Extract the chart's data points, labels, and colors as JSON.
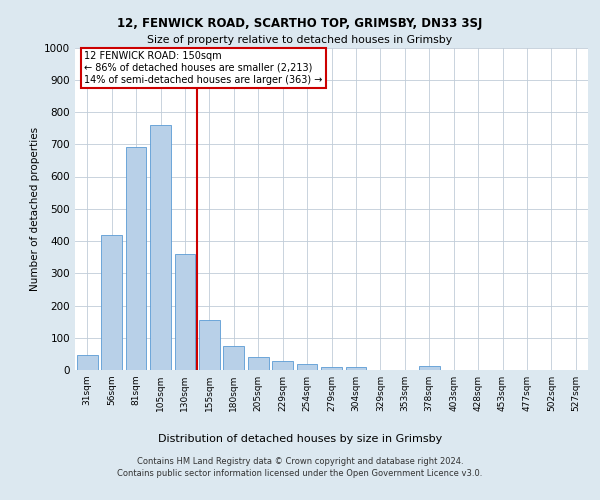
{
  "title": "12, FENWICK ROAD, SCARTHO TOP, GRIMSBY, DN33 3SJ",
  "subtitle": "Size of property relative to detached houses in Grimsby",
  "xlabel": "Distribution of detached houses by size in Grimsby",
  "ylabel": "Number of detached properties",
  "categories": [
    "31sqm",
    "56sqm",
    "81sqm",
    "105sqm",
    "130sqm",
    "155sqm",
    "180sqm",
    "205sqm",
    "229sqm",
    "254sqm",
    "279sqm",
    "304sqm",
    "329sqm",
    "353sqm",
    "378sqm",
    "403sqm",
    "428sqm",
    "453sqm",
    "477sqm",
    "502sqm",
    "527sqm"
  ],
  "values": [
    48,
    420,
    690,
    760,
    360,
    155,
    75,
    40,
    27,
    18,
    10,
    10,
    0,
    0,
    12,
    0,
    0,
    0,
    0,
    0,
    0
  ],
  "bar_color": "#b8d0e8",
  "bar_edge_color": "#5b9bd5",
  "vline_x_after_bin": 4,
  "annotation_title": "12 FENWICK ROAD: 150sqm",
  "annotation_line1": "← 86% of detached houses are smaller (2,213)",
  "annotation_line2": "14% of semi-detached houses are larger (363) →",
  "vline_color": "#cc0000",
  "annotation_box_facecolor": "#ffffff",
  "annotation_box_edgecolor": "#cc0000",
  "ylim": [
    0,
    1000
  ],
  "yticks": [
    0,
    100,
    200,
    300,
    400,
    500,
    600,
    700,
    800,
    900,
    1000
  ],
  "footer1": "Contains HM Land Registry data © Crown copyright and database right 2024.",
  "footer2": "Contains public sector information licensed under the Open Government Licence v3.0.",
  "bg_color": "#dce8f0",
  "plot_bg": "#ffffff",
  "grid_color": "#c0ccd8",
  "figsize": [
    6.0,
    5.0
  ],
  "dpi": 100
}
